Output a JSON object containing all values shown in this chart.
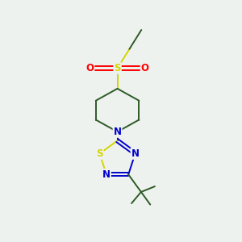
{
  "bg_color": "#eef2ee",
  "bond_color": "#2d5a27",
  "bond_width": 1.4,
  "S_color": "#d4d400",
  "N_color": "#0000cc",
  "O_color": "#ff0000",
  "font_size": 8.5,
  "fig_width": 3.0,
  "fig_height": 3.0,
  "dpi": 100,
  "xlim": [
    0,
    10
  ],
  "ylim": [
    0,
    10
  ]
}
